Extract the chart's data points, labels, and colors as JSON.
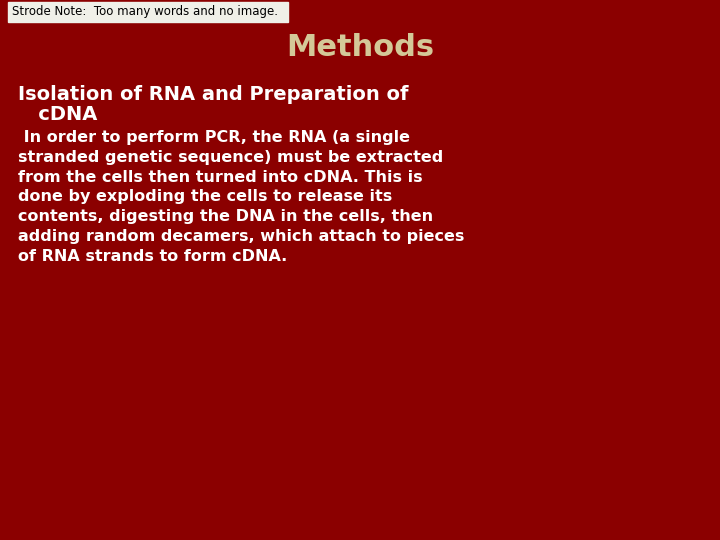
{
  "background_color": "#8B0000",
  "note_box_color": "#F0F0E8",
  "note_text": "Strode Note:  Too many words and no image.",
  "note_text_color": "#000000",
  "note_fontsize": 8.5,
  "title": "Methods",
  "title_color": "#D4C898",
  "title_fontsize": 22,
  "heading_line1": "Isolation of RNA and Preparation of",
  "heading_line2": "   cDNA",
  "heading_color": "#FFFFFF",
  "heading_fontsize": 14,
  "body_text": " In order to perform PCR, the RNA (a single\nstranded genetic sequence) must be extracted\nfrom the cells then turned into cDNA. This is\ndone by exploding the cells to release its\ncontents, digesting the DNA in the cells, then\nadding random decamers, which attach to pieces\nof RNA strands to form cDNA.",
  "body_color": "#FFFFFF",
  "body_fontsize": 11.5
}
